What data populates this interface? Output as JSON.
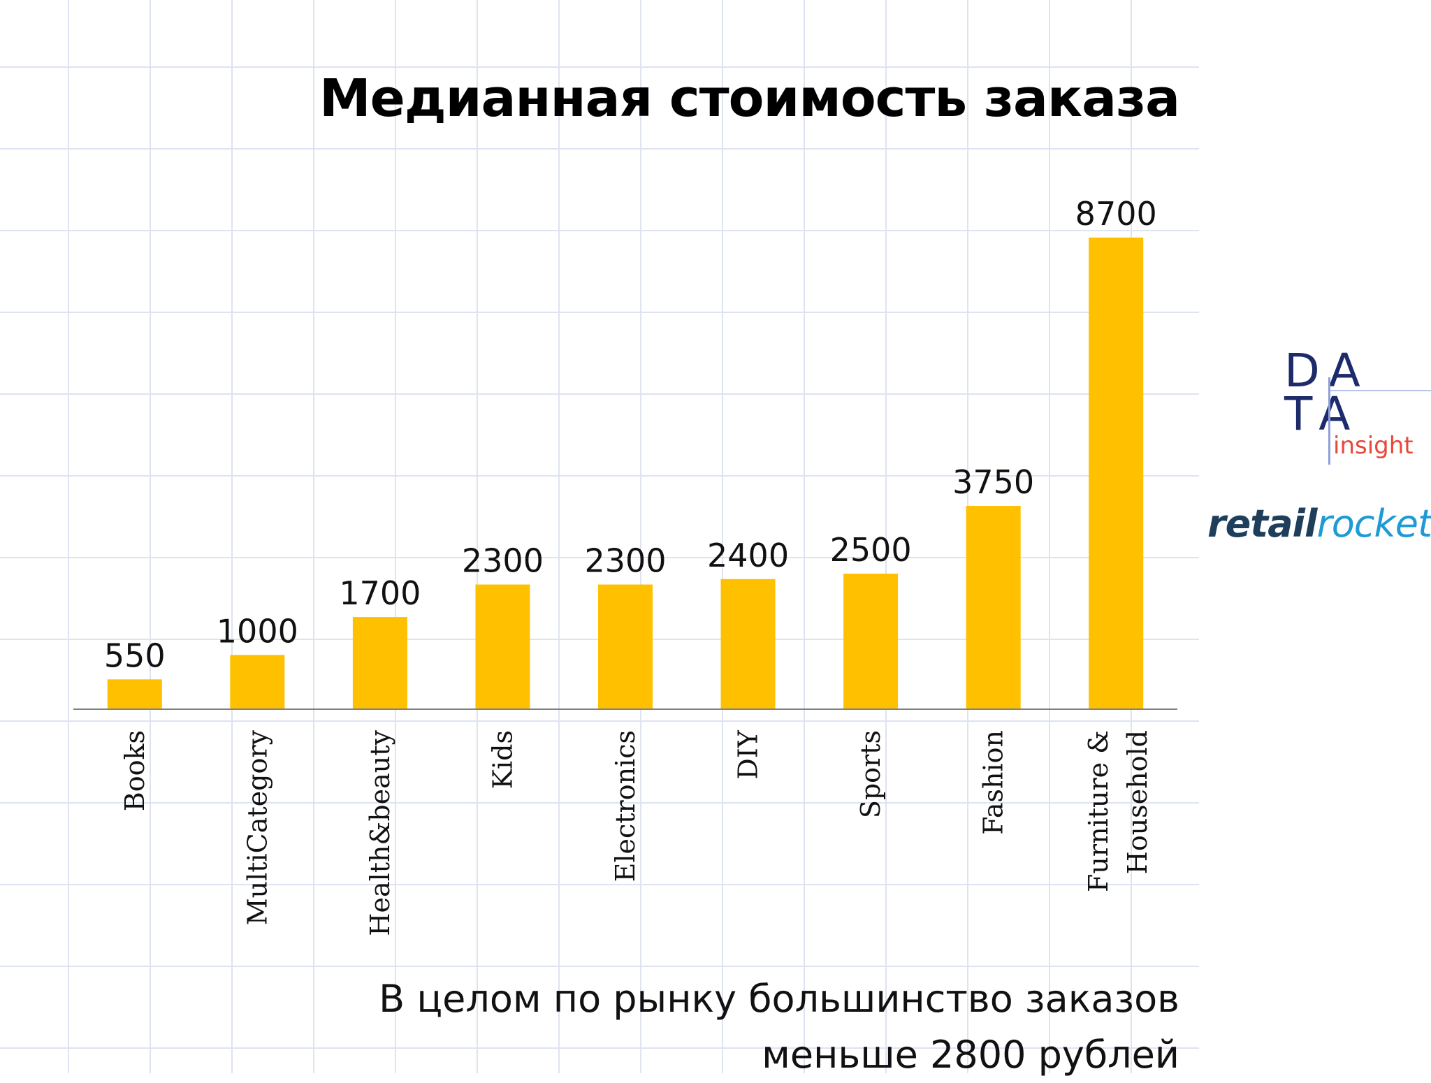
{
  "title": "Медианная стоимость заказа",
  "note_line1": "В целом по рынку большинство заказов",
  "note_line2": "меньше 2800 рублей",
  "logos": {
    "data_insight_letters": "DA\nTA",
    "data_insight_word": "insight",
    "retailrocket_part1": "retail",
    "retailrocket_part2": "rocket"
  },
  "colors": {
    "bar": "#FFC000",
    "axis": "#808080",
    "grid": "#dde3f0"
  },
  "chart_data": {
    "type": "bar",
    "categories": [
      "Books",
      "MultiCategory",
      "Health&beauty",
      "Kids",
      "Electronics",
      "DIY",
      "Sports",
      "Fashion",
      "Furniture & Household"
    ],
    "values": [
      550,
      1000,
      1700,
      2300,
      2300,
      2400,
      2500,
      3750,
      8700
    ],
    "value_labels": [
      "550",
      "1000",
      "1700",
      "2300",
      "2300",
      "2400",
      "2500",
      "3750",
      "8700"
    ],
    "title": "Медианная стоимость заказа",
    "xlabel": "",
    "ylabel": "",
    "ylim": [
      0,
      8700
    ],
    "grid": false,
    "legend": "none"
  }
}
